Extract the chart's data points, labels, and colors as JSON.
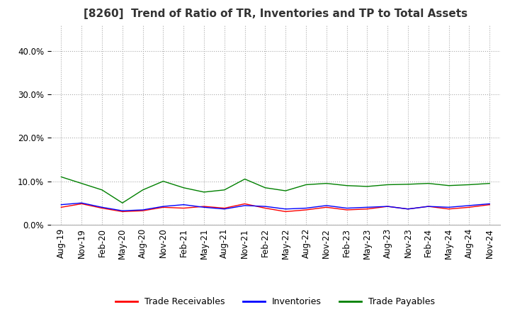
{
  "title": "[8260]  Trend of Ratio of TR, Inventories and TP to Total Assets",
  "ylim": [
    0.0,
    0.46
  ],
  "yticks": [
    0.0,
    0.1,
    0.2,
    0.3,
    0.4
  ],
  "legend_labels": [
    "Trade Receivables",
    "Inventories",
    "Trade Payables"
  ],
  "line_colors": [
    "#ff0000",
    "#0000ff",
    "#008000"
  ],
  "dates": [
    "Aug-19",
    "Nov-19",
    "Feb-20",
    "May-20",
    "Aug-20",
    "Nov-20",
    "Feb-21",
    "May-21",
    "Aug-21",
    "Nov-21",
    "Feb-22",
    "May-22",
    "Aug-22",
    "Nov-22",
    "Feb-23",
    "May-23",
    "Aug-23",
    "Nov-23",
    "Feb-24",
    "May-24",
    "Aug-24",
    "Nov-24"
  ],
  "trade_receivables": [
    0.04,
    0.048,
    0.038,
    0.03,
    0.032,
    0.04,
    0.038,
    0.042,
    0.038,
    0.048,
    0.038,
    0.03,
    0.034,
    0.04,
    0.034,
    0.036,
    0.042,
    0.036,
    0.042,
    0.036,
    0.04,
    0.046
  ],
  "inventories": [
    0.046,
    0.05,
    0.04,
    0.032,
    0.034,
    0.042,
    0.046,
    0.04,
    0.036,
    0.044,
    0.042,
    0.036,
    0.038,
    0.044,
    0.038,
    0.04,
    0.042,
    0.036,
    0.042,
    0.04,
    0.044,
    0.048
  ],
  "trade_payables": [
    0.11,
    0.095,
    0.08,
    0.05,
    0.08,
    0.1,
    0.085,
    0.075,
    0.08,
    0.105,
    0.085,
    0.078,
    0.092,
    0.095,
    0.09,
    0.088,
    0.092,
    0.093,
    0.095,
    0.09,
    0.092,
    0.095
  ],
  "background_color": "#ffffff",
  "grid_color": "#aaaaaa",
  "title_fontsize": 11,
  "tick_fontsize": 8.5
}
